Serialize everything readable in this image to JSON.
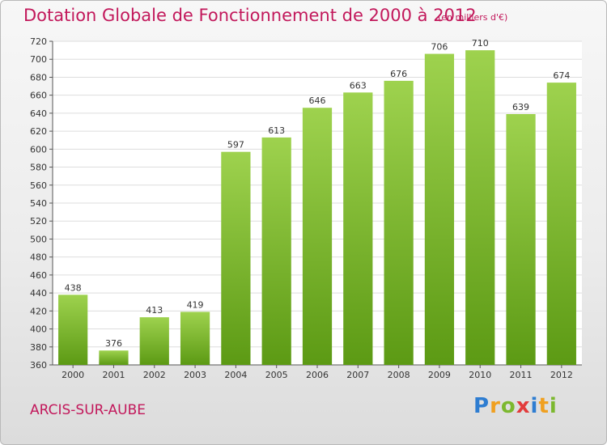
{
  "header": {
    "title": "Dotation Globale de Fonctionnement de 2000 à 2012",
    "subtitle": "(en milliers d'€)"
  },
  "footer": {
    "city": "ARCIS-SUR-AUBE",
    "logo_letters": [
      {
        "ch": "P",
        "color": "#2e7dd1"
      },
      {
        "ch": "r",
        "color": "#f0a020"
      },
      {
        "ch": "o",
        "color": "#7cb82f"
      },
      {
        "ch": "x",
        "color": "#e23b3b"
      },
      {
        "ch": "i",
        "color": "#2e7dd1"
      },
      {
        "ch": "t",
        "color": "#f0a020"
      },
      {
        "ch": "i",
        "color": "#7cb82f"
      }
    ]
  },
  "colors": {
    "bar_light": "#9ed24e",
    "bar_dark": "#5c9a14",
    "grid": "#dddddd",
    "accent": "#c2185b"
  },
  "chart_data": {
    "type": "bar",
    "title": "Dotation Globale de Fonctionnement de 2000 à 2012",
    "subtitle": "(en milliers d'€)",
    "xlabel": "",
    "ylabel": "",
    "categories": [
      "2000",
      "2001",
      "2002",
      "2003",
      "2004",
      "2005",
      "2006",
      "2007",
      "2008",
      "2009",
      "2010",
      "2011",
      "2012"
    ],
    "values": [
      438,
      376,
      413,
      419,
      597,
      613,
      646,
      663,
      676,
      706,
      710,
      639,
      674
    ],
    "ylim": [
      360,
      720
    ],
    "ytick_step": 20,
    "grid": true,
    "legend": "none"
  }
}
